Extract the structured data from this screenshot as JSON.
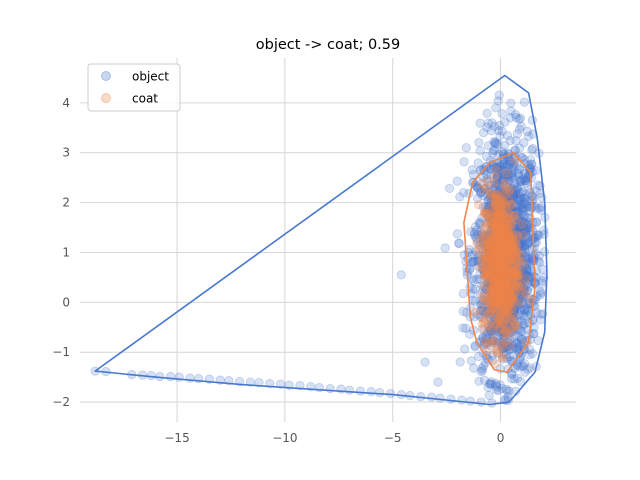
{
  "chart_data": {
    "type": "scatter",
    "title": "object -> coat; 0.59",
    "xlabel": "",
    "ylabel": "",
    "xlim": [
      -19.5,
      3.5
    ],
    "ylim": [
      -2.4,
      4.9
    ],
    "xticks": [
      -15,
      -10,
      -5,
      0
    ],
    "yticks": [
      -2,
      -1,
      0,
      1,
      2,
      3,
      4
    ],
    "xtick_labels": [
      "−15",
      "−10",
      "−5",
      "0"
    ],
    "ytick_labels": [
      "−2",
      "−1",
      "0",
      "1",
      "2",
      "3",
      "4"
    ],
    "grid": true,
    "legend_position": "top-left",
    "series": [
      {
        "name": "object",
        "color": "#4878cf",
        "hull": [
          [
            -18.8,
            -1.38
          ],
          [
            0.2,
            4.55
          ],
          [
            1.3,
            4.2
          ],
          [
            1.7,
            3.3
          ],
          [
            2.05,
            2.0
          ],
          [
            2.15,
            0.6
          ],
          [
            2.05,
            -0.6
          ],
          [
            1.6,
            -1.4
          ],
          [
            0.4,
            -2.0
          ],
          [
            -0.5,
            -2.05
          ],
          [
            -5.0,
            -1.85
          ],
          [
            -12.0,
            -1.65
          ],
          [
            -16.0,
            -1.5
          ]
        ],
        "tail_points": [
          [
            -18.8,
            -1.38
          ],
          [
            -18.3,
            -1.39
          ],
          [
            -17.1,
            -1.45
          ],
          [
            -16.6,
            -1.46
          ],
          [
            -16.2,
            -1.47
          ],
          [
            -15.8,
            -1.49
          ],
          [
            -15.3,
            -1.49
          ],
          [
            -14.9,
            -1.5
          ],
          [
            -14.4,
            -1.52
          ],
          [
            -14.0,
            -1.53
          ],
          [
            -13.5,
            -1.54
          ],
          [
            -13.0,
            -1.56
          ],
          [
            -12.6,
            -1.57
          ],
          [
            -12.1,
            -1.59
          ],
          [
            -11.6,
            -1.6
          ],
          [
            -11.2,
            -1.61
          ],
          [
            -10.7,
            -1.63
          ],
          [
            -10.2,
            -1.64
          ],
          [
            -9.8,
            -1.66
          ],
          [
            -9.3,
            -1.67
          ],
          [
            -8.8,
            -1.69
          ],
          [
            -8.4,
            -1.71
          ],
          [
            -7.9,
            -1.73
          ],
          [
            -7.4,
            -1.74
          ],
          [
            -7.0,
            -1.76
          ],
          [
            -6.5,
            -1.78
          ],
          [
            -6.0,
            -1.79
          ],
          [
            -5.6,
            -1.81
          ],
          [
            -5.1,
            -1.83
          ],
          [
            -4.6,
            -1.85
          ],
          [
            -4.2,
            -1.87
          ],
          [
            -3.7,
            -1.89
          ],
          [
            -3.2,
            -1.9
          ],
          [
            -2.8,
            -1.92
          ],
          [
            -2.3,
            -1.94
          ],
          [
            -1.8,
            -1.96
          ],
          [
            -1.4,
            -1.98
          ],
          [
            -0.9,
            -2.0
          ],
          [
            -0.4,
            -2.02
          ],
          [
            -4.6,
            0.55
          ],
          [
            -2.9,
            -1.6
          ],
          [
            -3.5,
            -1.2
          ]
        ],
        "cloud_center": [
          0.25,
          0.9
        ],
        "cloud_spread": [
          0.75,
          1.2
        ],
        "cloud_count": 1600
      },
      {
        "name": "coat",
        "color": "#ee854a",
        "hull": [
          [
            0.6,
            3.0
          ],
          [
            1.4,
            2.6
          ],
          [
            1.6,
            0.3
          ],
          [
            1.3,
            -0.8
          ],
          [
            0.3,
            -1.4
          ],
          [
            -0.3,
            -1.35
          ],
          [
            -1.1,
            -0.8
          ],
          [
            -1.4,
            -0.3
          ],
          [
            -1.7,
            1.6
          ],
          [
            -1.3,
            2.4
          ],
          [
            -0.5,
            2.8
          ]
        ],
        "cloud_center": [
          0.0,
          0.8
        ],
        "cloud_spread": [
          0.42,
          0.75
        ],
        "cloud_count": 700
      }
    ]
  }
}
